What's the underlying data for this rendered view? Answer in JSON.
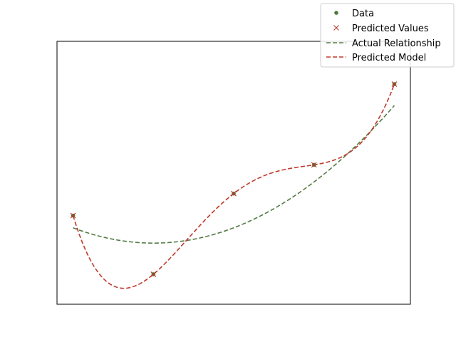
{
  "chart_data": {
    "type": "line",
    "title": "",
    "xlabel": "",
    "ylabel": "",
    "axes_ticks_visible": false,
    "grid": false,
    "legend_placement": "top-right",
    "xlim": [
      -0.2,
      4.2
    ],
    "ylim": [
      -1.1,
      3.2
    ],
    "data_points": {
      "name": "Data",
      "x": [
        0,
        1,
        2,
        3,
        4
      ],
      "y": [
        0.35,
        -0.61,
        0.71,
        1.18,
        2.5
      ]
    },
    "predicted_values": {
      "name": "Predicted Values",
      "x": [
        0,
        1,
        2,
        3,
        4
      ],
      "y": [
        0.35,
        -0.61,
        0.71,
        1.18,
        2.5
      ]
    },
    "series": [
      {
        "name": "Actual Relationship",
        "function": "0.25*x^2 - 0.5*x + 0.15",
        "x_range": [
          0,
          4
        ]
      },
      {
        "name": "Predicted Model",
        "function": "degree-4 polynomial through the five data points",
        "x_range": [
          0,
          4
        ]
      }
    ]
  },
  "legend": {
    "entries": [
      {
        "label": "Data",
        "marker": "dot"
      },
      {
        "label": "Predicted Values",
        "marker": "x"
      },
      {
        "label": "Actual Relationship",
        "marker": "dashed-line"
      },
      {
        "label": "Predicted Model",
        "marker": "dashed-line"
      }
    ]
  },
  "colors": {
    "data": "#4a7a3c",
    "actual": "#557a45",
    "predicted": "#c0392b",
    "frame": "#000000"
  }
}
